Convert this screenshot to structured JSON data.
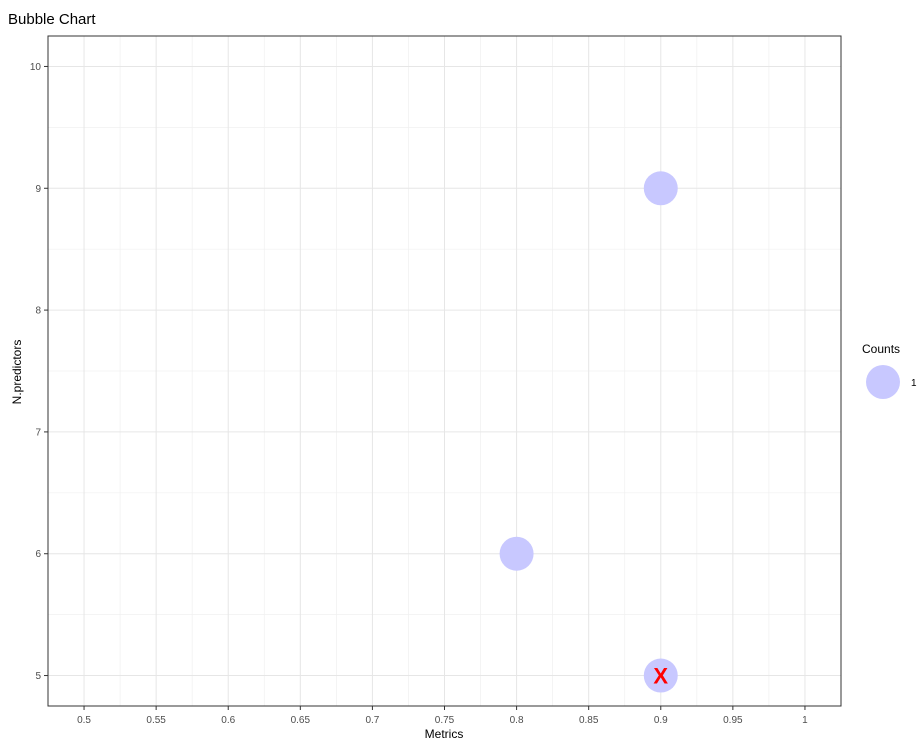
{
  "chart_data": {
    "type": "scatter",
    "title": "Bubble Chart",
    "xlabel": "Metrics",
    "ylabel": "N.predictors",
    "xlim": [
      0.475,
      1.025
    ],
    "ylim": [
      4.75,
      10.25
    ],
    "x_ticks": [
      0.5,
      0.55,
      0.6,
      0.65,
      0.7,
      0.75,
      0.8,
      0.85,
      0.9,
      0.95,
      1
    ],
    "x_tick_labels": [
      "0.5",
      "0.55",
      "0.6",
      "0.65",
      "0.7",
      "0.75",
      "0.8",
      "0.85",
      "0.9",
      "0.95",
      "1"
    ],
    "y_ticks": [
      5,
      6,
      7,
      8,
      9,
      10
    ],
    "y_tick_labels": [
      "5",
      "6",
      "7",
      "8",
      "9",
      "10"
    ],
    "grid": true,
    "bubble_color": "#c8c8ff",
    "points": [
      {
        "x": 0.9,
        "y": 9,
        "count": 1
      },
      {
        "x": 0.8,
        "y": 6,
        "count": 1
      },
      {
        "x": 0.9,
        "y": 5,
        "count": 1
      }
    ],
    "marker": {
      "x": 0.9,
      "y": 5,
      "symbol": "X",
      "color": "#ff0000"
    },
    "legend": {
      "title": "Counts",
      "items": [
        {
          "label": "1"
        }
      ],
      "position": "right"
    }
  }
}
